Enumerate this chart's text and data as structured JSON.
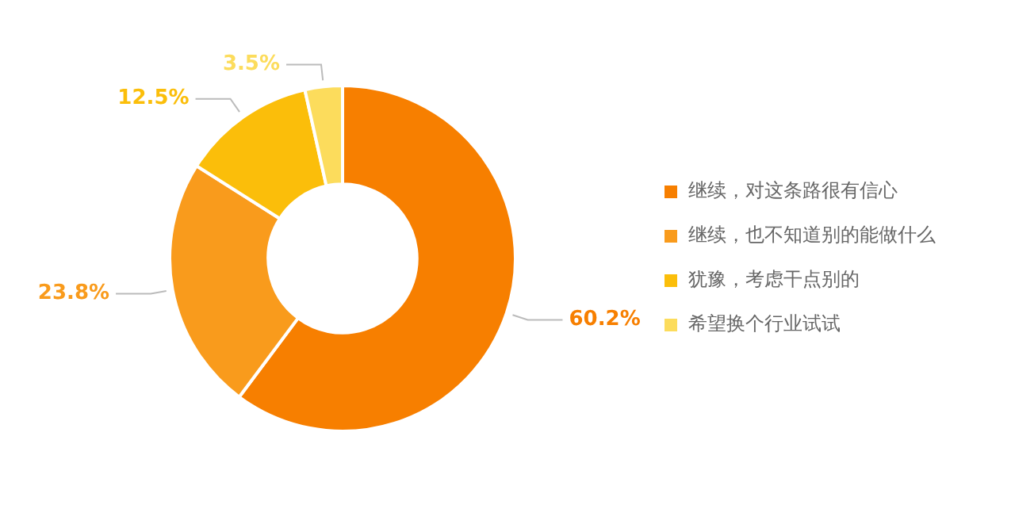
{
  "chart_data": {
    "type": "donut",
    "categories": [
      "继续，对这条路很有信心",
      "继续，也不知道别的能做什么",
      "犹豫，考虑干点别的",
      "希望换个行业试试"
    ],
    "values": [
      60.2,
      23.8,
      12.5,
      3.5
    ],
    "value_labels": [
      "60.2%",
      "23.8%",
      "12.5%",
      "3.5%"
    ],
    "colors": [
      "#f77f00",
      "#f99b1c",
      "#fbbe0a",
      "#fcdc5c"
    ],
    "legend": "right"
  }
}
